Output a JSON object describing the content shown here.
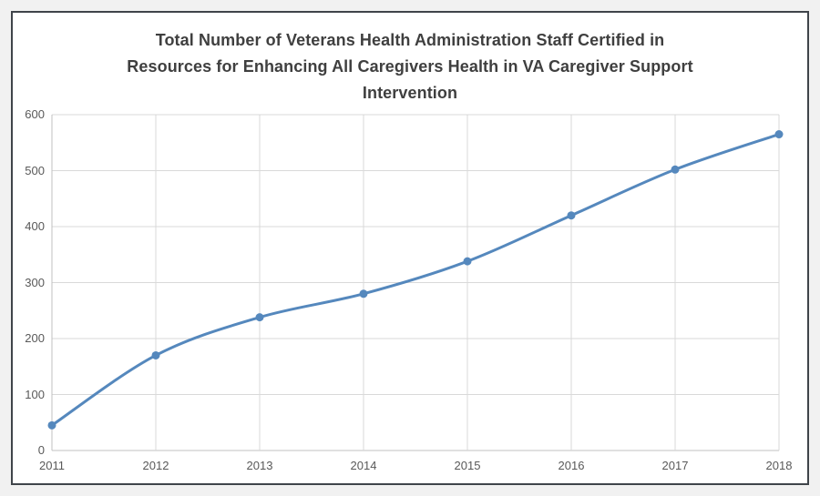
{
  "window": {
    "background_color": "#f1f1f1",
    "frame_border_color": "#3f444a",
    "chart_background_color": "#ffffff"
  },
  "chart_data": {
    "type": "line",
    "title": "Total Number of Veterans Health Administration Staff Certified in Resources for Enhancing All Caregivers Health in VA Caregiver Support Intervention",
    "title_lines": [
      "Total Number of Veterans Health Administration Staff Certified in",
      "Resources for Enhancing All Caregivers Health in VA Caregiver Support",
      "Intervention"
    ],
    "categories": [
      "2011",
      "2012",
      "2013",
      "2014",
      "2015",
      "2016",
      "2017",
      "2018"
    ],
    "values": [
      45,
      170,
      238,
      280,
      338,
      420,
      502,
      565
    ],
    "xlabel": "",
    "ylabel": "",
    "ylim": [
      0,
      600
    ],
    "yticks": [
      0,
      100,
      200,
      300,
      400,
      500,
      600
    ],
    "grid": true,
    "legend": "none",
    "smooth_line": true,
    "marker": "circle",
    "line_color": "#5588bd",
    "marker_color": "#5588bd",
    "gridline_color": "#d9d9d9",
    "axis_line_color": "#c0c0c0",
    "tick_label_color": "#595959",
    "title_color": "#3f3f3f"
  }
}
